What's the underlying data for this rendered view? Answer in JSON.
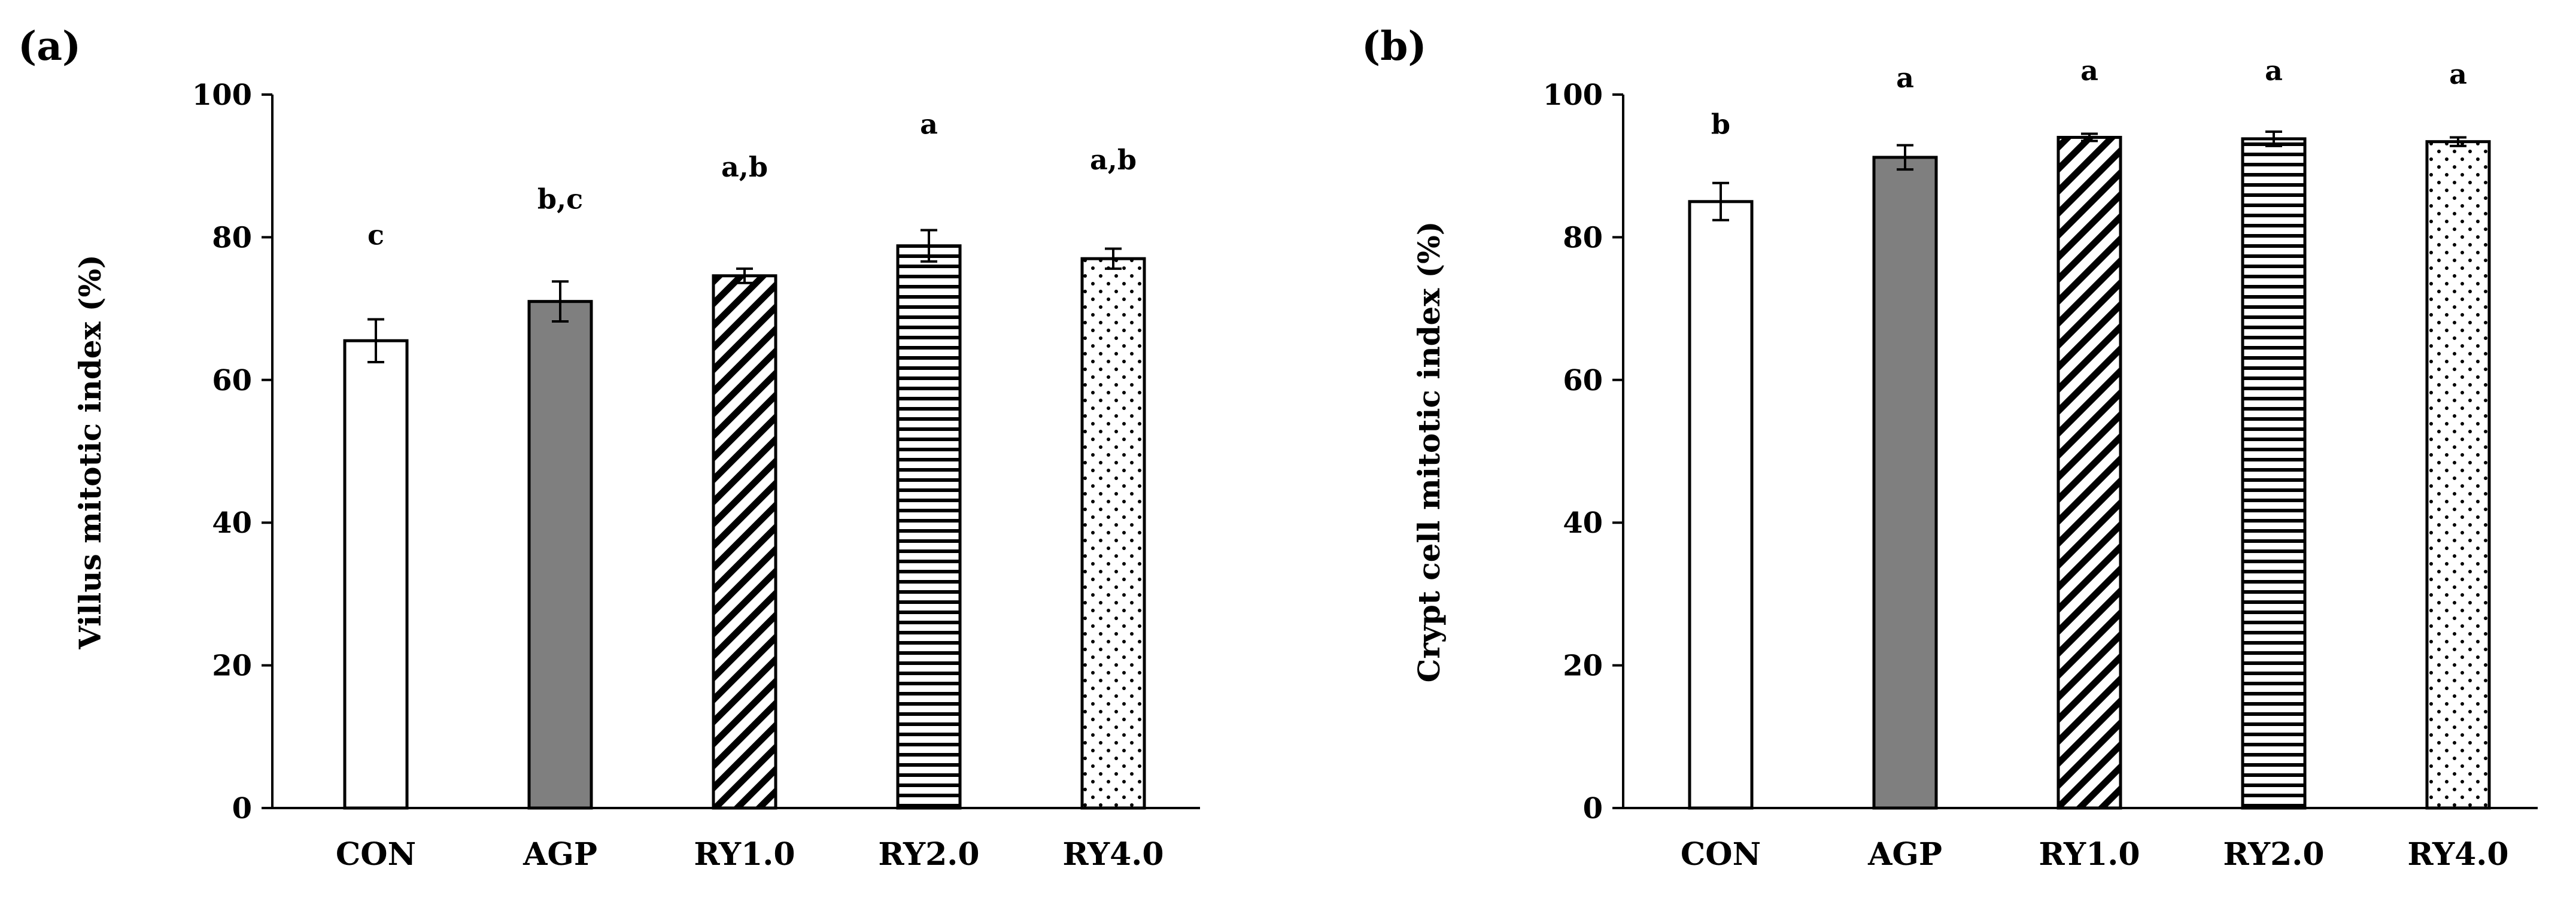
{
  "chart_data": [
    {
      "panel_label": "(a)",
      "type": "bar",
      "categories": [
        "CON",
        "AGP",
        "RY1.0",
        "RY2.0",
        "RY4.0"
      ],
      "values": [
        65.5,
        71.0,
        74.6,
        78.8,
        77.0
      ],
      "errors": [
        3.0,
        2.8,
        1.0,
        2.2,
        1.4
      ],
      "significance": [
        "c",
        "b,c",
        "a,b",
        "a",
        "a,b"
      ],
      "significance_y": [
        79.0,
        84.0,
        88.5,
        94.5,
        89.5
      ],
      "ylabel": "Villus mitotic index (%)",
      "xlabel": "",
      "ylim": [
        0,
        100
      ],
      "yticks": [
        "0",
        "20",
        "40",
        "60",
        "80",
        "100"
      ],
      "grid": false,
      "bar_fills": [
        "white",
        "solid-gray",
        "diagonal-hatch",
        "horizontal-hatch",
        "dotted"
      ]
    },
    {
      "panel_label": "(b)",
      "type": "bar",
      "categories": [
        "CON",
        "AGP",
        "RY1.0",
        "RY2.0",
        "RY4.0"
      ],
      "values": [
        85.0,
        91.2,
        94.0,
        93.8,
        93.4
      ],
      "errors": [
        2.6,
        1.7,
        0.5,
        1.0,
        0.6
      ],
      "significance": [
        "b",
        "a",
        "a",
        "a",
        "a"
      ],
      "significance_y": [
        94.5,
        101.0,
        102.0,
        102.0,
        101.5
      ],
      "ylabel": "Crypt cell mitotic index (%)",
      "xlabel": "",
      "ylim": [
        0,
        100
      ],
      "yticks": [
        "0",
        "20",
        "40",
        "60",
        "80",
        "100"
      ],
      "grid": false,
      "bar_fills": [
        "white",
        "solid-gray",
        "diagonal-hatch",
        "horizontal-hatch",
        "dotted"
      ]
    }
  ],
  "colors": {
    "solid_gray": "#7f7f7f",
    "axis": "#000000",
    "bar_outline": "#000000"
  }
}
